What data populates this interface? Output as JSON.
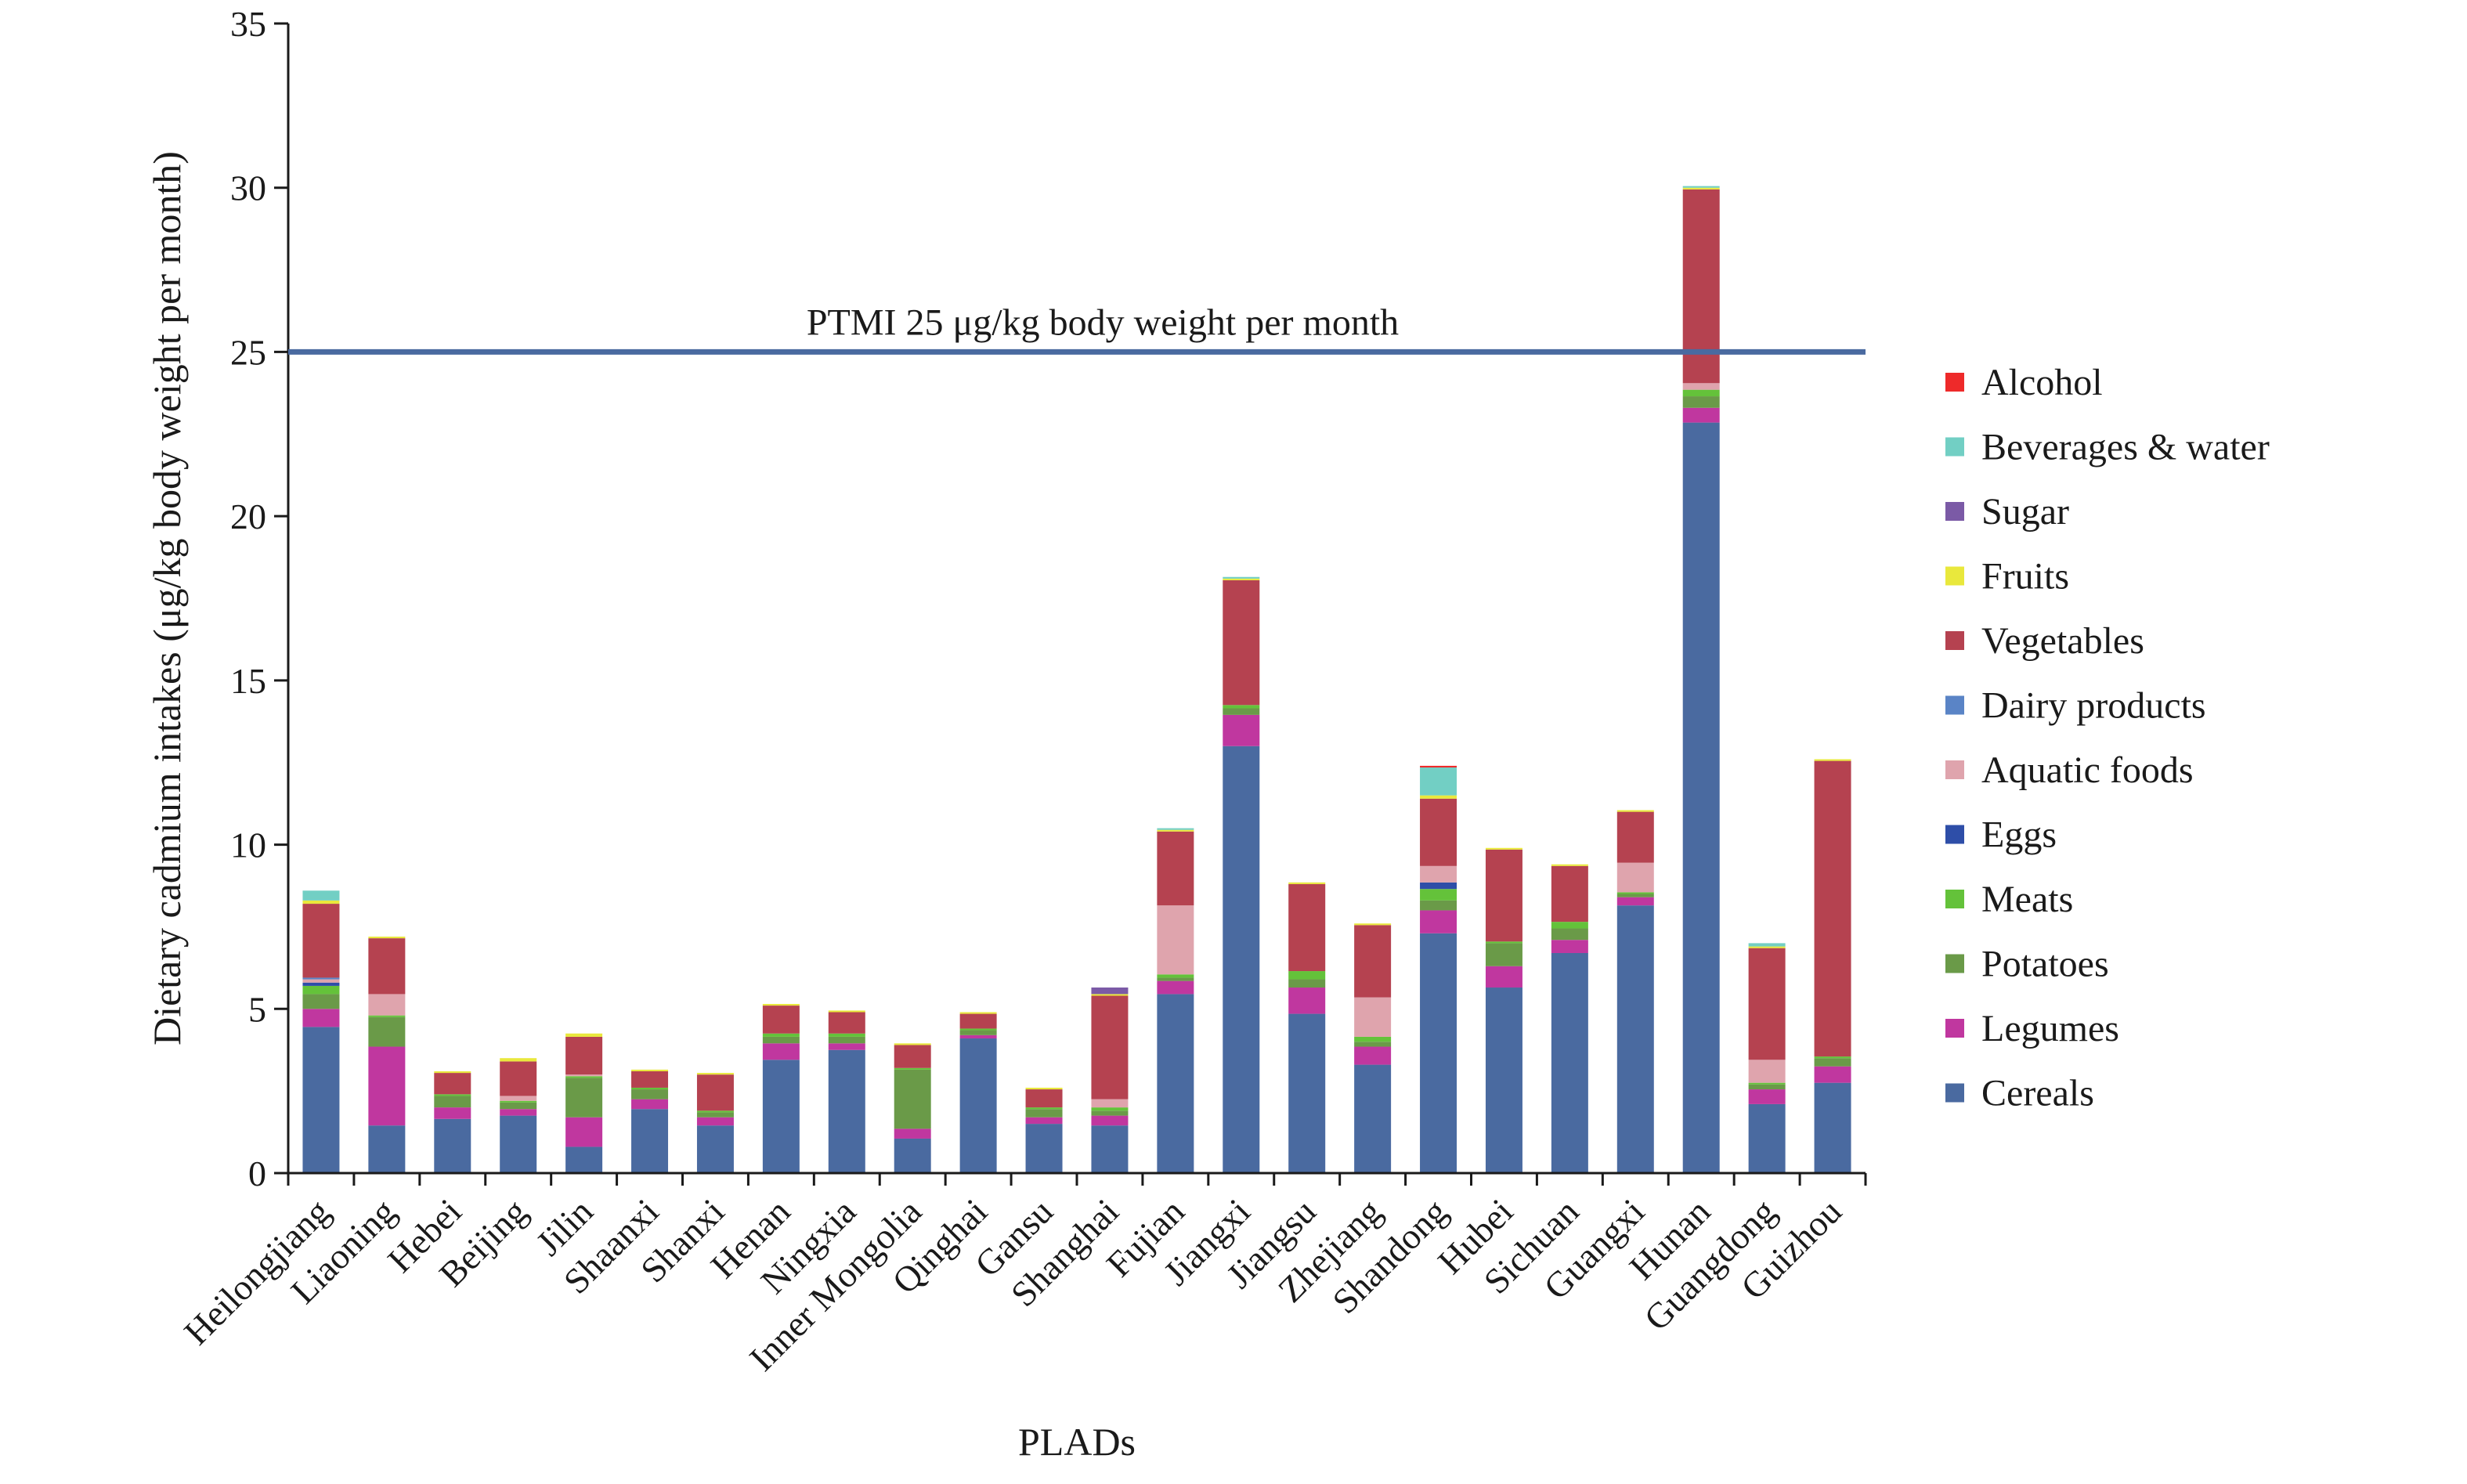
{
  "chart_data": {
    "type": "bar",
    "stacked": true,
    "xlabel": "PLADs",
    "ylabel": "Dietary cadmium intakes (μg/kg body weight per month)",
    "ylim": [
      0,
      35
    ],
    "yticks": [
      0,
      5,
      10,
      15,
      20,
      25,
      30,
      35
    ],
    "grid": false,
    "legend_position": "right",
    "categories": [
      "Heilongjiang",
      "Liaoning",
      "Hebei",
      "Beijing",
      "Jilin",
      "Shaanxi",
      "Shanxi",
      "Henan",
      "Ningxia",
      "Inner Mongolia",
      "Qinghai",
      "Gansu",
      "Shanghai",
      "Fujian",
      "Jiangxi",
      "Jiangsu",
      "Zhejiang",
      "Shandong",
      "Hubei",
      "Sichuan",
      "Guangxi",
      "Hunan",
      "Guangdong",
      "Guizhou"
    ],
    "series": [
      {
        "name": "Cereals",
        "color": "#4a6aa0",
        "values": [
          4.45,
          1.45,
          1.65,
          1.75,
          0.8,
          1.95,
          1.45,
          3.45,
          3.75,
          1.05,
          4.1,
          1.5,
          1.45,
          5.45,
          13.0,
          4.85,
          3.3,
          7.3,
          5.65,
          6.7,
          8.15,
          22.85,
          2.1,
          2.75
        ]
      },
      {
        "name": "Legumes",
        "color": "#c0379f",
        "values": [
          0.55,
          2.4,
          0.35,
          0.2,
          0.9,
          0.3,
          0.25,
          0.5,
          0.2,
          0.3,
          0.1,
          0.2,
          0.3,
          0.4,
          0.95,
          0.8,
          0.55,
          0.7,
          0.65,
          0.4,
          0.25,
          0.45,
          0.45,
          0.5
        ]
      },
      {
        "name": "Potatoes",
        "color": "#6a9a48",
        "values": [
          0.45,
          0.9,
          0.35,
          0.2,
          1.2,
          0.3,
          0.15,
          0.2,
          0.2,
          1.8,
          0.15,
          0.25,
          0.15,
          0.1,
          0.2,
          0.25,
          0.15,
          0.3,
          0.7,
          0.35,
          0.1,
          0.35,
          0.15,
          0.25
        ]
      },
      {
        "name": "Meats",
        "color": "#64c23a",
        "values": [
          0.25,
          0.05,
          0.05,
          0.05,
          0.05,
          0.05,
          0.05,
          0.1,
          0.1,
          0.05,
          0.05,
          0.05,
          0.1,
          0.1,
          0.1,
          0.25,
          0.15,
          0.35,
          0.05,
          0.2,
          0.05,
          0.2,
          0.05,
          0.05
        ]
      },
      {
        "name": "Eggs",
        "color": "#2e4ea8",
        "values": [
          0.1,
          0.0,
          0.0,
          0.0,
          0.0,
          0.0,
          0.0,
          0.0,
          0.0,
          0.0,
          0.0,
          0.0,
          0.0,
          0.0,
          0.0,
          0.0,
          0.0,
          0.2,
          0.0,
          0.0,
          0.0,
          0.0,
          0.0,
          0.0
        ]
      },
      {
        "name": "Aquatic foods",
        "color": "#dfa4ad",
        "values": [
          0.1,
          0.65,
          0.0,
          0.15,
          0.05,
          0.0,
          0.0,
          0.0,
          0.0,
          0.0,
          0.0,
          0.0,
          0.25,
          2.1,
          0.0,
          0.0,
          1.2,
          0.5,
          0.0,
          0.0,
          0.9,
          0.2,
          0.7,
          0.0
        ]
      },
      {
        "name": "Dairy products",
        "color": "#5a84c6",
        "values": [
          0.05,
          0.0,
          0.0,
          0.0,
          0.0,
          0.0,
          0.0,
          0.0,
          0.0,
          0.0,
          0.0,
          0.0,
          0.0,
          0.0,
          0.0,
          0.0,
          0.0,
          0.0,
          0.0,
          0.0,
          0.0,
          0.0,
          0.0,
          0.0
        ]
      },
      {
        "name": "Vegetables",
        "color": "#b54250",
        "values": [
          2.25,
          1.7,
          0.65,
          1.05,
          1.15,
          0.5,
          1.1,
          0.85,
          0.65,
          0.7,
          0.45,
          0.55,
          3.15,
          2.25,
          3.8,
          2.65,
          2.2,
          2.05,
          2.8,
          1.7,
          1.55,
          5.9,
          3.4,
          9.0
        ]
      },
      {
        "name": "Fruits",
        "color": "#e9e83c",
        "values": [
          0.1,
          0.05,
          0.05,
          0.1,
          0.1,
          0.05,
          0.05,
          0.05,
          0.05,
          0.05,
          0.05,
          0.05,
          0.05,
          0.05,
          0.05,
          0.05,
          0.05,
          0.1,
          0.05,
          0.05,
          0.05,
          0.05,
          0.05,
          0.05
        ]
      },
      {
        "name": "Sugar",
        "color": "#7b5aa6",
        "values": [
          0.0,
          0.0,
          0.0,
          0.0,
          0.0,
          0.0,
          0.0,
          0.0,
          0.0,
          0.0,
          0.0,
          0.0,
          0.2,
          0.0,
          0.0,
          0.0,
          0.0,
          0.0,
          0.0,
          0.0,
          0.0,
          0.0,
          0.0,
          0.0
        ]
      },
      {
        "name": "Beverages & water",
        "color": "#72cfc4",
        "values": [
          0.3,
          0.0,
          0.0,
          0.0,
          0.0,
          0.0,
          0.0,
          0.0,
          0.0,
          0.0,
          0.0,
          0.0,
          0.0,
          0.05,
          0.05,
          0.0,
          0.0,
          0.85,
          0.0,
          0.0,
          0.0,
          0.05,
          0.1,
          0.0
        ]
      },
      {
        "name": "Alcohol",
        "color": "#ee2a2a",
        "values": [
          0.0,
          0.0,
          0.0,
          0.0,
          0.0,
          0.0,
          0.0,
          0.0,
          0.0,
          0.0,
          0.0,
          0.0,
          0.0,
          0.0,
          0.0,
          0.0,
          0.0,
          0.05,
          0.0,
          0.0,
          0.0,
          0.0,
          0.0,
          0.0
        ]
      }
    ],
    "reference_line": {
      "value": 25,
      "label": "PTMI  25 μg/kg body weight per month",
      "color": "#4a6aa0"
    }
  }
}
